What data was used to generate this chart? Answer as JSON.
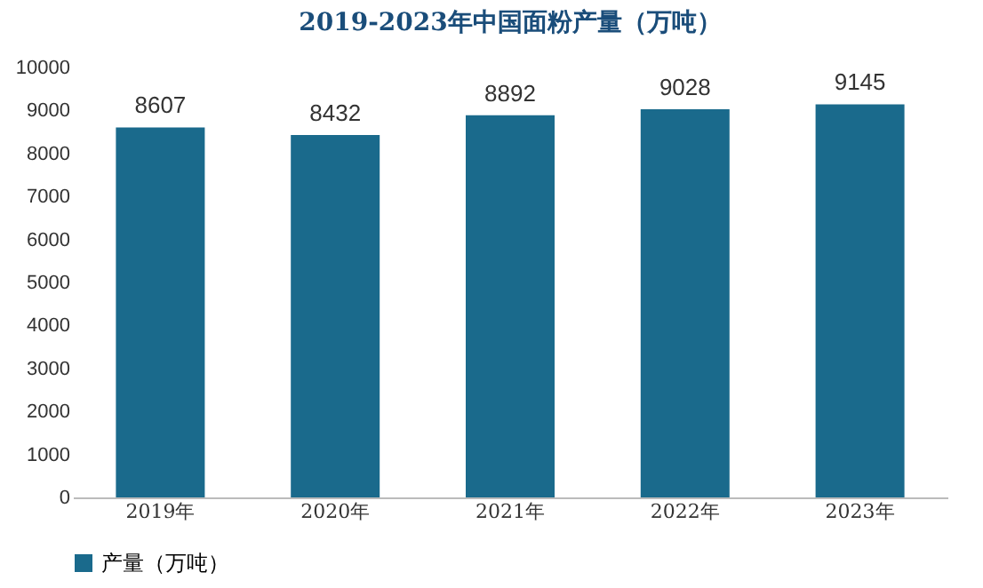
{
  "chart_data": {
    "type": "bar",
    "title": "2019-2023年中国面粉产量（万吨）",
    "categories": [
      "2019年",
      "2020年",
      "2021年",
      "2022年",
      "2023年"
    ],
    "series": [
      {
        "name": "产量（万吨）",
        "color": "#1a6a8c",
        "values": [
          8607,
          8432,
          8892,
          9028,
          9145
        ]
      }
    ],
    "ylim": [
      0,
      10000
    ],
    "yticks": [
      0,
      1000,
      2000,
      3000,
      4000,
      5000,
      6000,
      7000,
      8000,
      9000,
      10000
    ],
    "grid": false,
    "legend": "bottom",
    "data_labels": true
  }
}
